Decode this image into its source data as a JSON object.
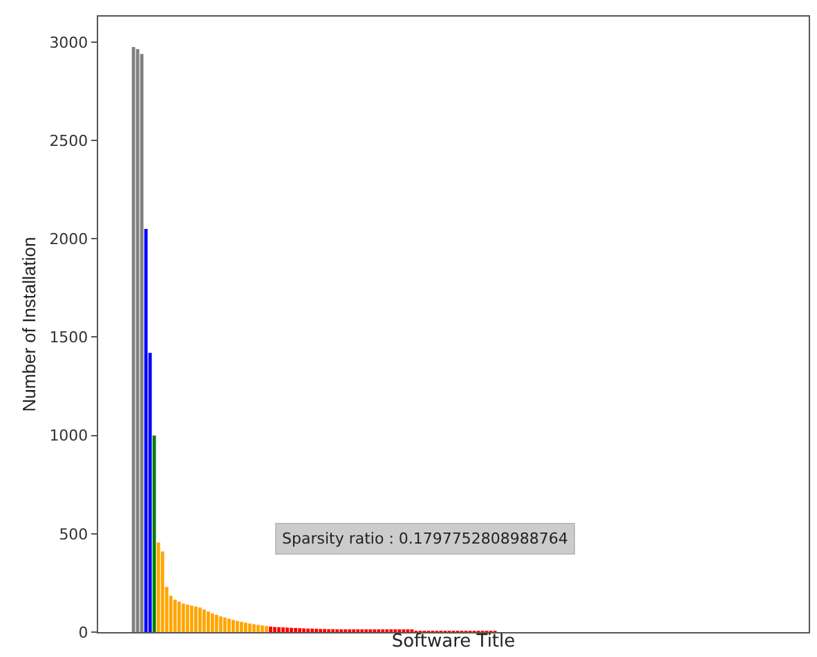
{
  "chart_data": {
    "type": "bar",
    "xlabel": "Software Title",
    "ylabel": "Number of Installation",
    "categories": [
      null,
      null,
      null,
      null,
      null,
      null,
      null,
      null,
      null,
      null,
      null,
      null,
      null,
      null,
      null,
      null,
      null,
      null,
      null,
      null,
      null,
      null,
      null,
      null,
      null,
      null,
      null,
      null,
      null,
      null,
      null,
      null,
      null,
      null,
      null,
      null,
      null,
      null,
      null,
      null,
      null,
      null,
      null,
      null,
      null,
      null,
      null,
      null,
      null,
      null,
      null,
      null,
      null,
      null,
      null,
      null,
      null,
      null,
      null,
      null,
      null,
      null,
      null,
      null,
      null,
      null,
      null,
      null,
      null,
      null,
      null,
      null,
      null,
      null,
      null,
      null,
      null,
      null,
      null,
      null,
      null,
      null,
      null,
      null,
      null,
      null,
      null,
      null,
      null,
      null,
      null,
      null,
      null,
      null,
      null,
      null,
      null,
      null,
      null,
      null,
      null,
      null,
      null,
      null,
      null,
      null,
      null,
      null,
      null,
      null,
      null,
      null,
      null,
      null,
      null,
      null,
      null,
      null,
      null,
      null,
      null,
      null,
      null,
      null,
      null,
      null,
      null,
      null,
      null,
      null,
      null,
      null,
      null,
      null,
      null,
      null,
      null,
      null,
      null,
      null,
      null,
      null,
      null,
      null,
      null,
      null,
      null,
      null,
      null,
      null,
      null,
      null,
      null,
      null,
      null,
      null,
      null,
      null,
      null,
      null,
      null,
      null,
      null,
      null,
      null,
      null,
      null,
      null,
      null,
      null,
      null
    ],
    "values": [
      null,
      null,
      null,
      null,
      null,
      null,
      null,
      null,
      2975,
      2965,
      2940,
      2050,
      1420,
      1000,
      455,
      410,
      230,
      185,
      165,
      155,
      145,
      140,
      135,
      130,
      125,
      115,
      105,
      95,
      88,
      80,
      74,
      68,
      62,
      57,
      52,
      48,
      44,
      40,
      37,
      34,
      31,
      28,
      26,
      25,
      24,
      23,
      22,
      21,
      20,
      19,
      18,
      18,
      17,
      16,
      16,
      15,
      15,
      14,
      14,
      13,
      13,
      12,
      12,
      11,
      11,
      11,
      10,
      10,
      10,
      9,
      9,
      9,
      8,
      8,
      8,
      8,
      7,
      7,
      7,
      7,
      6,
      6,
      6,
      6,
      6,
      5,
      5,
      5,
      5,
      5,
      5,
      4,
      4,
      4,
      4,
      4,
      null,
      null,
      null,
      null,
      null,
      null,
      null,
      null,
      null,
      null,
      null,
      null,
      null,
      null,
      null,
      null,
      null,
      null,
      null,
      null,
      null,
      null,
      null,
      null,
      null,
      null,
      null,
      null,
      null,
      null,
      null,
      null,
      null,
      null,
      null,
      null,
      null,
      null,
      null,
      null,
      null,
      null,
      null,
      null,
      null,
      null,
      null,
      null,
      null,
      null,
      null,
      null,
      null,
      null,
      null,
      null,
      null,
      null,
      null,
      null,
      null,
      null,
      null,
      null,
      null,
      null,
      null,
      null,
      null,
      null,
      null,
      null,
      null,
      null,
      null
    ],
    "colors": [
      null,
      null,
      null,
      null,
      null,
      null,
      null,
      null,
      "#808080",
      "#808080",
      "#808080",
      "#0000ff",
      "#0000ff",
      "#008000",
      "#ffa500",
      "#ffa500",
      "#ffa500",
      "#ffa500",
      "#ffa500",
      "#ffa500",
      "#ffa500",
      "#ffa500",
      "#ffa500",
      "#ffa500",
      "#ffa500",
      "#ffa500",
      "#ffa500",
      "#ffa500",
      "#ffa500",
      "#ffa500",
      "#ffa500",
      "#ffa500",
      "#ffa500",
      "#ffa500",
      "#ffa500",
      "#ffa500",
      "#ffa500",
      "#ffa500",
      "#ffa500",
      "#ffa500",
      "#ffa500",
      "#ff0000",
      "#ff0000",
      "#ff0000",
      "#ff0000",
      "#ff0000",
      "#ff0000",
      "#ff0000",
      "#ff0000",
      "#ff0000",
      "#ff0000",
      "#ff0000",
      "#ff0000",
      "#ff0000",
      "#ff0000",
      "#ff0000",
      "#ff0000",
      "#ff0000",
      "#ff0000",
      "#ff0000",
      "#ff0000",
      "#ff0000",
      "#ff0000",
      "#ff0000",
      "#ff0000",
      "#ff0000",
      "#ff0000",
      "#ff0000",
      "#ff0000",
      "#ff0000",
      "#ff0000",
      "#ff0000",
      "#ff0000",
      "#ff0000",
      "#ff0000",
      "#ff0000",
      "#ff0000",
      "#ff0000",
      "#ff0000",
      "#ff0000",
      "#ff0000",
      "#ff0000",
      "#ff0000",
      "#ff0000",
      "#ff0000",
      "#ff0000",
      "#ff0000",
      "#ff0000",
      "#ff0000",
      "#ff0000",
      "#ff0000",
      "#ff0000",
      "#ff0000",
      "#ff0000",
      "#ff0000",
      "#ff0000",
      null,
      null,
      null,
      null,
      null,
      null,
      null,
      null,
      null,
      null,
      null,
      null,
      null,
      null,
      null,
      null,
      null,
      null,
      null,
      null,
      null,
      null,
      null,
      null,
      null,
      null,
      null,
      null,
      null,
      null,
      null,
      null,
      null,
      null,
      null,
      null,
      null,
      null,
      null,
      null,
      null,
      null,
      null,
      null,
      null,
      null,
      null,
      null,
      null,
      null,
      null,
      null,
      null,
      null,
      null,
      null,
      null,
      null,
      null,
      null,
      null,
      null,
      null,
      null,
      null,
      null,
      null,
      null,
      null,
      null,
      null,
      null,
      null,
      null,
      null
    ],
    "ylim": [
      0,
      3130
    ],
    "yticks": [
      0,
      500,
      1000,
      1500,
      2000,
      2500,
      3000
    ],
    "tick_labels": "y",
    "annotations": [
      "Sparsity ratio : 0.1797752808988764"
    ]
  }
}
